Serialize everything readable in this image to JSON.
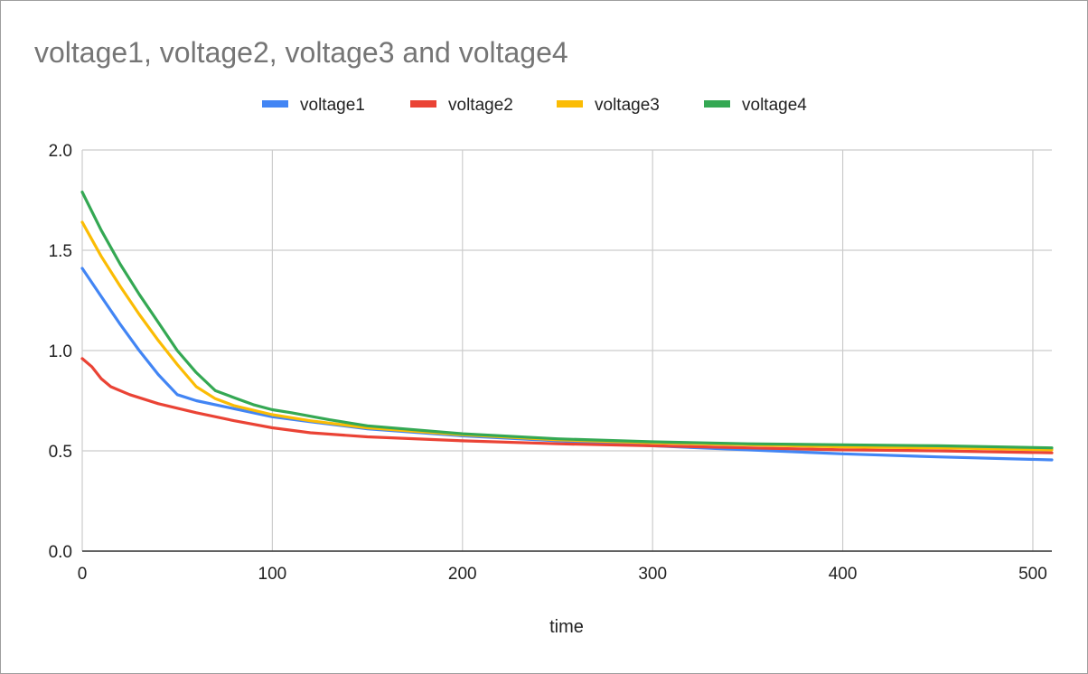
{
  "chart_data": {
    "type": "line",
    "title": "voltage1, voltage2, voltage3 and voltage4",
    "xlabel": "time",
    "ylabel": "",
    "xlim": [
      0,
      510
    ],
    "ylim": [
      0,
      2
    ],
    "x_ticks": [
      0,
      100,
      200,
      300,
      400,
      500
    ],
    "y_ticks": [
      0,
      0.5,
      1,
      1.5,
      2
    ],
    "y_tick_labels": [
      "0.0",
      "0.5",
      "1.0",
      "1.5",
      "2.0"
    ],
    "x_tick_labels": [
      "0",
      "100",
      "200",
      "300",
      "400",
      "500"
    ],
    "grid": true,
    "legend_position": "top",
    "series": [
      {
        "name": "voltage1",
        "color": "#4285f4",
        "points": [
          [
            0,
            1.41
          ],
          [
            10,
            1.27
          ],
          [
            20,
            1.13
          ],
          [
            30,
            1.0
          ],
          [
            40,
            0.88
          ],
          [
            50,
            0.78
          ],
          [
            60,
            0.75
          ],
          [
            80,
            0.71
          ],
          [
            100,
            0.67
          ],
          [
            120,
            0.645
          ],
          [
            150,
            0.61
          ],
          [
            200,
            0.575
          ],
          [
            250,
            0.55
          ],
          [
            300,
            0.525
          ],
          [
            350,
            0.505
          ],
          [
            400,
            0.485
          ],
          [
            450,
            0.47
          ],
          [
            510,
            0.455
          ]
        ]
      },
      {
        "name": "voltage2",
        "color": "#ea4335",
        "points": [
          [
            0,
            0.96
          ],
          [
            5,
            0.92
          ],
          [
            10,
            0.86
          ],
          [
            15,
            0.82
          ],
          [
            25,
            0.78
          ],
          [
            40,
            0.735
          ],
          [
            60,
            0.69
          ],
          [
            80,
            0.65
          ],
          [
            100,
            0.615
          ],
          [
            120,
            0.59
          ],
          [
            150,
            0.57
          ],
          [
            200,
            0.55
          ],
          [
            250,
            0.535
          ],
          [
            300,
            0.525
          ],
          [
            350,
            0.515
          ],
          [
            400,
            0.505
          ],
          [
            450,
            0.5
          ],
          [
            510,
            0.49
          ]
        ]
      },
      {
        "name": "voltage3",
        "color": "#fbbc04",
        "points": [
          [
            0,
            1.64
          ],
          [
            10,
            1.47
          ],
          [
            20,
            1.32
          ],
          [
            30,
            1.18
          ],
          [
            40,
            1.05
          ],
          [
            50,
            0.93
          ],
          [
            60,
            0.82
          ],
          [
            70,
            0.76
          ],
          [
            80,
            0.725
          ],
          [
            100,
            0.68
          ],
          [
            120,
            0.65
          ],
          [
            150,
            0.615
          ],
          [
            200,
            0.58
          ],
          [
            250,
            0.555
          ],
          [
            300,
            0.54
          ],
          [
            350,
            0.53
          ],
          [
            400,
            0.52
          ],
          [
            450,
            0.515
          ],
          [
            510,
            0.505
          ]
        ]
      },
      {
        "name": "voltage4",
        "color": "#34a853",
        "points": [
          [
            0,
            1.79
          ],
          [
            10,
            1.6
          ],
          [
            20,
            1.43
          ],
          [
            30,
            1.28
          ],
          [
            40,
            1.14
          ],
          [
            50,
            1.0
          ],
          [
            60,
            0.89
          ],
          [
            70,
            0.8
          ],
          [
            80,
            0.765
          ],
          [
            90,
            0.73
          ],
          [
            100,
            0.705
          ],
          [
            110,
            0.69
          ],
          [
            130,
            0.655
          ],
          [
            150,
            0.625
          ],
          [
            200,
            0.585
          ],
          [
            250,
            0.56
          ],
          [
            300,
            0.545
          ],
          [
            350,
            0.535
          ],
          [
            400,
            0.53
          ],
          [
            450,
            0.525
          ],
          [
            510,
            0.515
          ]
        ]
      }
    ]
  }
}
